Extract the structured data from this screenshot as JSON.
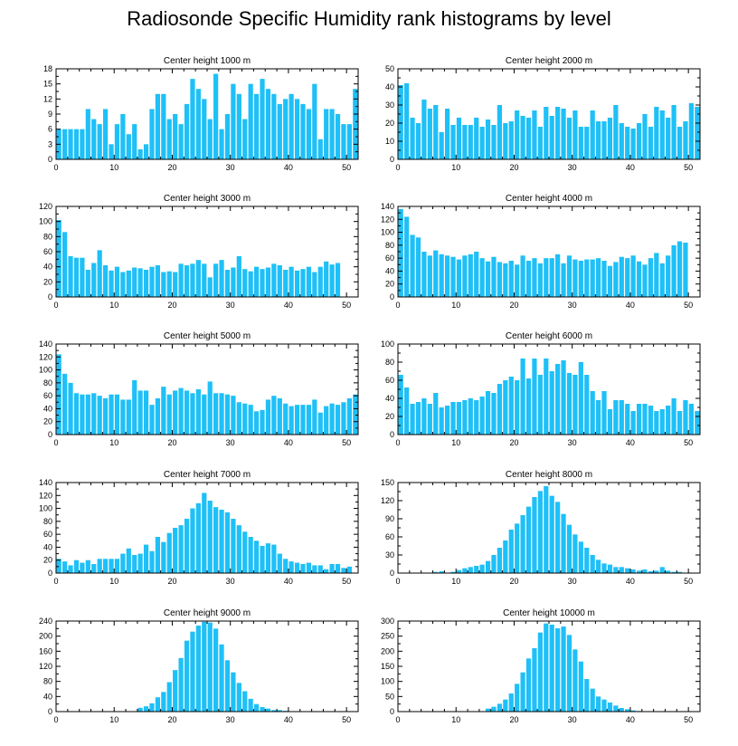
{
  "figure": {
    "title": "Radiosonde Specific Humidity rank histograms by level",
    "bar_color": "#1ec0f7"
  },
  "chart_data": [
    {
      "type": "bar",
      "title": "Center height 1000 m",
      "xlim": [
        0,
        52
      ],
      "xticks": [
        0,
        10,
        20,
        30,
        40,
        50
      ],
      "ylim": [
        0,
        18
      ],
      "yticks": [
        0,
        3,
        6,
        9,
        12,
        15,
        18
      ],
      "values": [
        6,
        6,
        6,
        6,
        6,
        10,
        8,
        7,
        10,
        3,
        7,
        9,
        5,
        7,
        2,
        3,
        10,
        13,
        13,
        8,
        9,
        7,
        11,
        16,
        14,
        12,
        8,
        17,
        6,
        9,
        15,
        13,
        8,
        15,
        13,
        16,
        14,
        13,
        11,
        12,
        13,
        12,
        11,
        10,
        15,
        4,
        10,
        10,
        9,
        7,
        7,
        14
      ]
    },
    {
      "type": "bar",
      "title": "Center height 2000 m",
      "xlim": [
        0,
        52
      ],
      "xticks": [
        0,
        10,
        20,
        30,
        40,
        50
      ],
      "ylim": [
        0,
        50
      ],
      "yticks": [
        0,
        10,
        20,
        30,
        40,
        50
      ],
      "values": [
        41,
        42,
        23,
        20,
        33,
        28,
        30,
        15,
        28,
        19,
        23,
        19,
        19,
        23,
        18,
        22,
        19,
        30,
        20,
        21,
        27,
        24,
        23,
        27,
        18,
        29,
        24,
        29,
        28,
        23,
        27,
        18,
        18,
        27,
        21,
        21,
        23,
        30,
        20,
        18,
        17,
        20,
        25,
        18,
        29,
        27,
        23,
        30,
        18,
        21,
        31,
        29
      ]
    },
    {
      "type": "bar",
      "title": "Center height 3000 m",
      "xlim": [
        0,
        52
      ],
      "xticks": [
        0,
        10,
        20,
        30,
        40,
        50
      ],
      "ylim": [
        0,
        120
      ],
      "yticks": [
        0,
        20,
        40,
        60,
        80,
        100,
        120
      ],
      "values": [
        102,
        86,
        54,
        52,
        52,
        36,
        45,
        62,
        42,
        35,
        40,
        33,
        35,
        39,
        38,
        36,
        40,
        42,
        33,
        34,
        33,
        44,
        42,
        44,
        49,
        44,
        26,
        44,
        49,
        36,
        39,
        54,
        37,
        34,
        40,
        37,
        39,
        44,
        42,
        36,
        40,
        35,
        37,
        40,
        33,
        40,
        47,
        43,
        45
      ]
    },
    {
      "type": "bar",
      "title": "Center height 4000 m",
      "xlim": [
        0,
        52
      ],
      "xticks": [
        0,
        10,
        20,
        30,
        40,
        50
      ],
      "ylim": [
        0,
        140
      ],
      "yticks": [
        0,
        20,
        40,
        60,
        80,
        100,
        120,
        140
      ],
      "values": [
        136,
        124,
        96,
        92,
        70,
        64,
        72,
        66,
        64,
        62,
        58,
        64,
        66,
        70,
        60,
        55,
        62,
        54,
        52,
        56,
        50,
        64,
        56,
        60,
        52,
        60,
        60,
        66,
        52,
        64,
        58,
        56,
        58,
        58,
        60,
        56,
        48,
        54,
        62,
        60,
        64,
        55,
        50,
        60,
        68,
        52,
        64,
        80,
        86,
        84
      ]
    },
    {
      "type": "bar",
      "title": "Center height 5000 m",
      "xlim": [
        0,
        52
      ],
      "xticks": [
        0,
        10,
        20,
        30,
        40,
        50
      ],
      "ylim": [
        0,
        140
      ],
      "yticks": [
        0,
        20,
        40,
        60,
        80,
        100,
        120,
        140
      ],
      "values": [
        124,
        94,
        80,
        64,
        62,
        62,
        64,
        60,
        56,
        62,
        62,
        54,
        54,
        84,
        68,
        68,
        46,
        56,
        74,
        62,
        68,
        72,
        68,
        64,
        70,
        62,
        82,
        64,
        64,
        62,
        60,
        50,
        48,
        46,
        36,
        38,
        54,
        60,
        56,
        48,
        44,
        46,
        46,
        46,
        54,
        34,
        44,
        48,
        46,
        50,
        56,
        62
      ]
    },
    {
      "type": "bar",
      "title": "Center height 6000 m",
      "xlim": [
        0,
        52
      ],
      "xticks": [
        0,
        10,
        20,
        30,
        40,
        50
      ],
      "ylim": [
        0,
        100
      ],
      "yticks": [
        0,
        20,
        40,
        60,
        80,
        100
      ],
      "values": [
        66,
        52,
        34,
        36,
        40,
        34,
        46,
        30,
        32,
        36,
        36,
        38,
        40,
        38,
        42,
        48,
        46,
        56,
        60,
        64,
        60,
        84,
        62,
        84,
        66,
        84,
        70,
        78,
        82,
        68,
        66,
        80,
        66,
        48,
        38,
        48,
        28,
        38,
        38,
        34,
        26,
        34,
        34,
        32,
        26,
        28,
        32,
        40,
        26,
        38,
        34,
        26
      ]
    },
    {
      "type": "bar",
      "title": "Center height 7000 m",
      "xlim": [
        0,
        52
      ],
      "xticks": [
        0,
        10,
        20,
        30,
        40,
        50
      ],
      "ylim": [
        0,
        140
      ],
      "yticks": [
        0,
        20,
        40,
        60,
        80,
        100,
        120,
        140
      ],
      "values": [
        22,
        18,
        12,
        20,
        16,
        20,
        14,
        22,
        22,
        22,
        22,
        30,
        38,
        28,
        30,
        44,
        34,
        56,
        48,
        62,
        70,
        74,
        84,
        100,
        108,
        124,
        112,
        102,
        98,
        94,
        84,
        74,
        64,
        56,
        50,
        42,
        46,
        44,
        30,
        22,
        18,
        16,
        14,
        16,
        12,
        12,
        6,
        14,
        14,
        8,
        10
      ]
    },
    {
      "type": "bar",
      "title": "Center height 8000 m",
      "xlim": [
        0,
        52
      ],
      "xticks": [
        0,
        10,
        20,
        30,
        40,
        50
      ],
      "ylim": [
        0,
        150
      ],
      "yticks": [
        0,
        30,
        60,
        90,
        120,
        150
      ],
      "values": [
        0,
        0,
        0,
        0,
        0,
        0,
        2,
        3,
        0,
        2,
        5,
        8,
        10,
        12,
        14,
        20,
        30,
        42,
        54,
        72,
        82,
        96,
        110,
        126,
        136,
        144,
        128,
        118,
        98,
        80,
        64,
        52,
        42,
        30,
        22,
        16,
        14,
        10,
        10,
        8,
        6,
        4,
        6,
        3,
        4,
        10,
        4,
        2,
        2,
        0,
        0
      ]
    },
    {
      "type": "bar",
      "title": "Center height 9000 m",
      "xlim": [
        0,
        52
      ],
      "xticks": [
        0,
        10,
        20,
        30,
        40,
        50
      ],
      "ylim": [
        0,
        240
      ],
      "yticks": [
        0,
        40,
        80,
        120,
        160,
        200,
        240
      ],
      "values": [
        0,
        0,
        0,
        0,
        0,
        0,
        0,
        0,
        0,
        0,
        0,
        0,
        0,
        0,
        10,
        14,
        22,
        38,
        52,
        78,
        110,
        142,
        188,
        212,
        228,
        238,
        236,
        220,
        178,
        136,
        104,
        76,
        54,
        34,
        20,
        12,
        8,
        4,
        4,
        2,
        0,
        0,
        0,
        0,
        0,
        0,
        0,
        0,
        0,
        0,
        0
      ]
    },
    {
      "type": "bar",
      "title": "Center height 10000 m",
      "xlim": [
        0,
        52
      ],
      "xticks": [
        0,
        10,
        20,
        30,
        40,
        50
      ],
      "ylim": [
        0,
        300
      ],
      "yticks": [
        0,
        50,
        100,
        150,
        200,
        250,
        300
      ],
      "values": [
        0,
        0,
        0,
        0,
        0,
        0,
        0,
        0,
        0,
        0,
        0,
        0,
        0,
        0,
        0,
        10,
        16,
        26,
        40,
        60,
        92,
        130,
        176,
        210,
        262,
        292,
        288,
        276,
        282,
        254,
        206,
        166,
        108,
        76,
        50,
        40,
        30,
        20,
        12,
        8,
        4,
        2,
        0,
        0,
        0,
        0,
        0,
        0,
        0,
        0,
        0
      ]
    }
  ]
}
